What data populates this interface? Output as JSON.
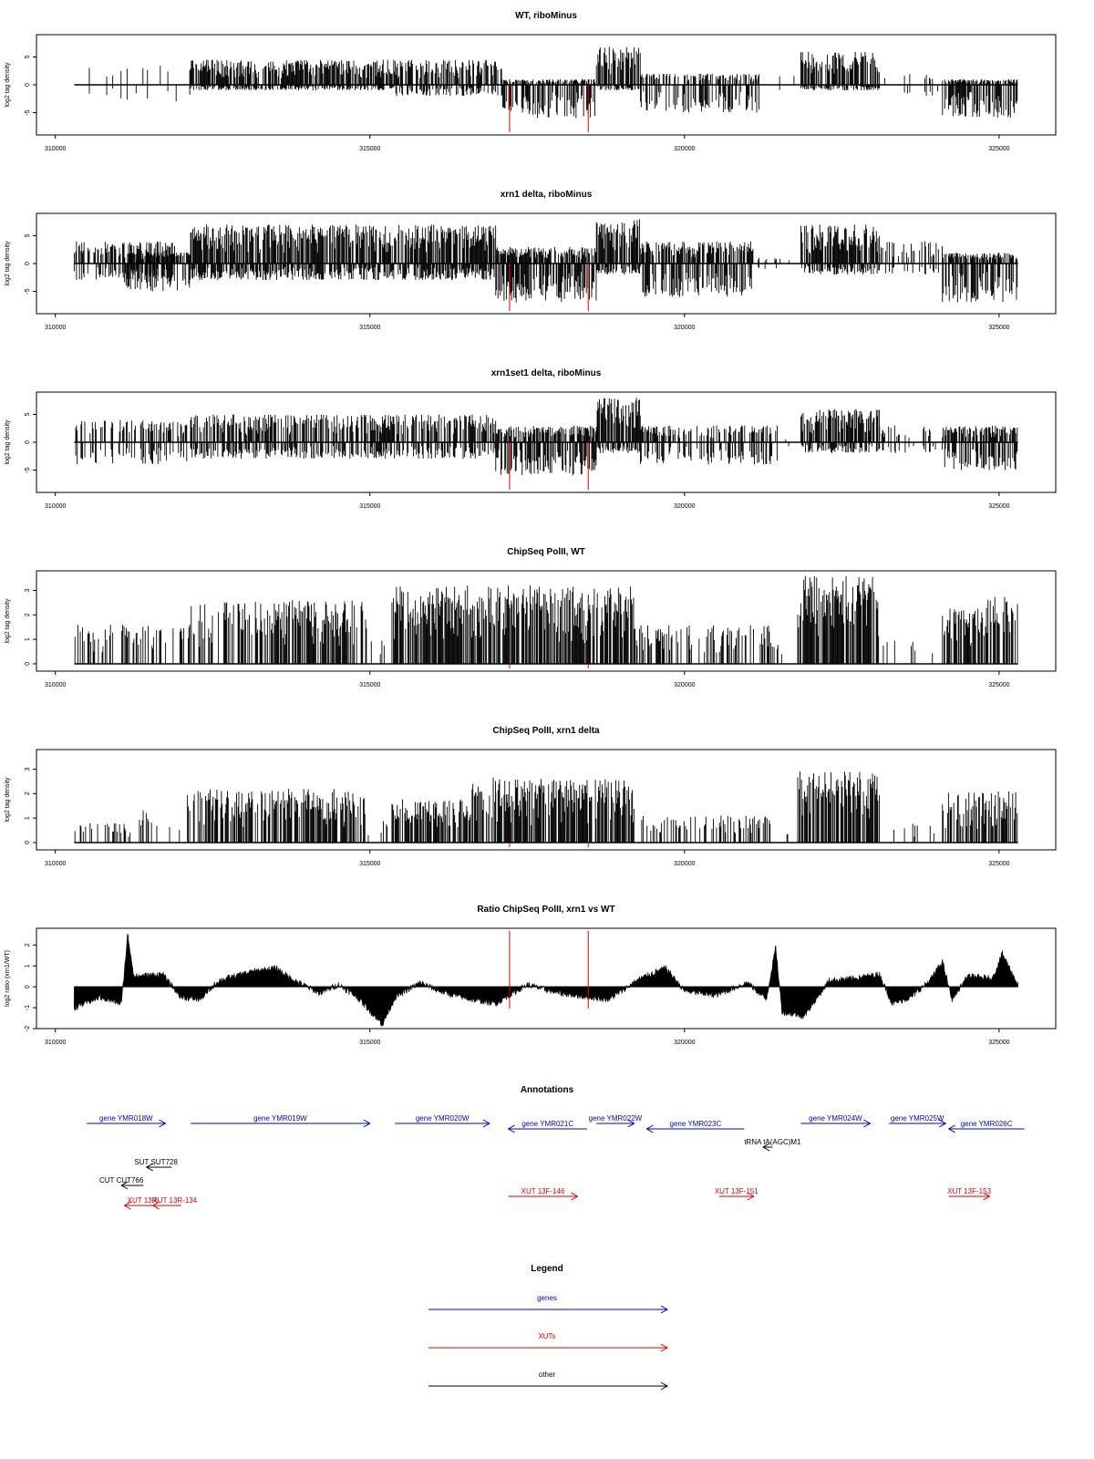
{
  "colors": {
    "gene": "#0000cc",
    "xut": "#dd0000",
    "other": "#000000",
    "marker": "#dd0000",
    "bars": "#000000"
  },
  "marker_positions": [
    317220,
    318470
  ],
  "chart_data": [
    {
      "type": "bar",
      "title": "WT, riboMinus",
      "ylabel": "log2 tag density",
      "xlim": [
        309700,
        325900
      ],
      "ylim": [
        -9,
        9
      ],
      "yticks": [
        -5,
        0,
        5
      ],
      "xticks": [
        310000,
        315000,
        320000,
        325000
      ],
      "x_range": [
        310300,
        325300
      ],
      "regions": [
        {
          "start": 310300,
          "end": 312150,
          "pos_max": 3.5,
          "neg_max": -3,
          "density": 0.12
        },
        {
          "start": 312150,
          "end": 315400,
          "pos_max": 4.5,
          "neg_max": -1,
          "density": 0.9
        },
        {
          "start": 315400,
          "end": 317100,
          "pos_max": 4.5,
          "neg_max": -2,
          "density": 0.75
        },
        {
          "start": 317100,
          "end": 318600,
          "pos_max": 1,
          "neg_max": -6,
          "density": 0.85
        },
        {
          "start": 318600,
          "end": 319300,
          "pos_max": 7,
          "neg_max": -1,
          "density": 0.95
        },
        {
          "start": 319300,
          "end": 321200,
          "pos_max": 2,
          "neg_max": -5,
          "density": 0.55
        },
        {
          "start": 321200,
          "end": 321850,
          "pos_max": 2,
          "neg_max": -1,
          "density": 0.08
        },
        {
          "start": 321850,
          "end": 323100,
          "pos_max": 6,
          "neg_max": -1,
          "density": 0.9
        },
        {
          "start": 323100,
          "end": 324100,
          "pos_max": 2,
          "neg_max": -2,
          "density": 0.15
        },
        {
          "start": 324100,
          "end": 325300,
          "pos_max": 1,
          "neg_max": -6,
          "density": 0.85
        }
      ]
    },
    {
      "type": "bar",
      "title": "xrn1 delta, riboMinus",
      "ylabel": "log2 tag density",
      "xlim": [
        309700,
        325900
      ],
      "ylim": [
        -9,
        9
      ],
      "yticks": [
        -5,
        0,
        5
      ],
      "xticks": [
        310000,
        315000,
        320000,
        325000
      ],
      "x_range": [
        310300,
        325300
      ],
      "regions": [
        {
          "start": 310300,
          "end": 311900,
          "pos_max": 4,
          "neg_max": -3,
          "density": 0.7
        },
        {
          "start": 311100,
          "end": 312150,
          "pos_max": 2,
          "neg_max": -5,
          "density": 0.8
        },
        {
          "start": 312150,
          "end": 317000,
          "pos_max": 7,
          "neg_max": -3,
          "density": 0.95
        },
        {
          "start": 317000,
          "end": 318600,
          "pos_max": 3,
          "neg_max": -7,
          "density": 0.95
        },
        {
          "start": 318600,
          "end": 319300,
          "pos_max": 8,
          "neg_max": -2,
          "density": 0.95
        },
        {
          "start": 319300,
          "end": 321100,
          "pos_max": 4,
          "neg_max": -6,
          "density": 0.85
        },
        {
          "start": 321100,
          "end": 321850,
          "pos_max": 1,
          "neg_max": -1,
          "density": 0.1
        },
        {
          "start": 321850,
          "end": 323100,
          "pos_max": 7,
          "neg_max": -2,
          "density": 0.95
        },
        {
          "start": 323100,
          "end": 324100,
          "pos_max": 4,
          "neg_max": -2,
          "density": 0.4
        },
        {
          "start": 324100,
          "end": 325300,
          "pos_max": 2,
          "neg_max": -7,
          "density": 0.9
        }
      ]
    },
    {
      "type": "bar",
      "title": "xrn1set1 delta, riboMinus",
      "ylabel": "log2 tag density",
      "xlim": [
        309700,
        325900
      ],
      "ylim": [
        -9,
        9
      ],
      "yticks": [
        -5,
        0,
        5
      ],
      "xticks": [
        310000,
        315000,
        320000,
        325000
      ],
      "x_range": [
        310300,
        325300
      ],
      "regions": [
        {
          "start": 310300,
          "end": 312150,
          "pos_max": 4,
          "neg_max": -4,
          "density": 0.5
        },
        {
          "start": 312150,
          "end": 317000,
          "pos_max": 5,
          "neg_max": -3,
          "density": 0.7
        },
        {
          "start": 317000,
          "end": 318600,
          "pos_max": 3,
          "neg_max": -6,
          "density": 0.85
        },
        {
          "start": 318600,
          "end": 319300,
          "pos_max": 8,
          "neg_max": -2,
          "density": 0.95
        },
        {
          "start": 319300,
          "end": 321500,
          "pos_max": 3,
          "neg_max": -4,
          "density": 0.6
        },
        {
          "start": 321500,
          "end": 321850,
          "pos_max": 1,
          "neg_max": -1,
          "density": 0.08
        },
        {
          "start": 321850,
          "end": 323100,
          "pos_max": 6,
          "neg_max": -2,
          "density": 0.9
        },
        {
          "start": 323100,
          "end": 324100,
          "pos_max": 3,
          "neg_max": -2,
          "density": 0.35
        },
        {
          "start": 324100,
          "end": 325300,
          "pos_max": 3,
          "neg_max": -5,
          "density": 0.85
        }
      ]
    },
    {
      "type": "bar",
      "title": "ChipSeq PolII, WT",
      "ylabel": "log2 tag density",
      "xlim": [
        309700,
        325900
      ],
      "ylim": [
        -0.3,
        3.8
      ],
      "yticks": [
        0,
        1,
        2,
        3
      ],
      "xticks": [
        310000,
        315000,
        320000,
        325000
      ],
      "x_range": [
        310300,
        325300
      ],
      "regions": [
        {
          "start": 310300,
          "end": 312100,
          "pos_max": 1.6,
          "neg_max": 0,
          "density": 0.35
        },
        {
          "start": 312100,
          "end": 314950,
          "pos_max": 2.6,
          "neg_max": 0,
          "density": 0.75
        },
        {
          "start": 314950,
          "end": 315350,
          "pos_max": 1,
          "neg_max": 0,
          "density": 0.1
        },
        {
          "start": 315350,
          "end": 319200,
          "pos_max": 3.2,
          "neg_max": 0,
          "density": 0.9
        },
        {
          "start": 319200,
          "end": 321400,
          "pos_max": 1.6,
          "neg_max": 0,
          "density": 0.5
        },
        {
          "start": 321400,
          "end": 321800,
          "pos_max": 1,
          "neg_max": 0,
          "density": 0.1
        },
        {
          "start": 321800,
          "end": 323100,
          "pos_max": 3.6,
          "neg_max": 0,
          "density": 0.95
        },
        {
          "start": 323100,
          "end": 324100,
          "pos_max": 1,
          "neg_max": 0,
          "density": 0.12
        },
        {
          "start": 324100,
          "end": 324800,
          "pos_max": 2.3,
          "neg_max": 0,
          "density": 0.8
        },
        {
          "start": 324800,
          "end": 325300,
          "pos_max": 2.8,
          "neg_max": 0,
          "density": 0.7
        }
      ]
    },
    {
      "type": "bar",
      "title": "ChipSeq PolII, xrn1 delta",
      "ylabel": "log2 tag density",
      "xlim": [
        309700,
        325900
      ],
      "ylim": [
        -0.3,
        3.8
      ],
      "yticks": [
        0,
        1,
        2,
        3
      ],
      "xticks": [
        310000,
        315000,
        320000,
        325000
      ],
      "x_range": [
        310300,
        325300
      ],
      "regions": [
        {
          "start": 310300,
          "end": 311300,
          "pos_max": 0.8,
          "neg_max": 0,
          "density": 0.2
        },
        {
          "start": 311300,
          "end": 311600,
          "pos_max": 1.4,
          "neg_max": 0,
          "density": 0.4
        },
        {
          "start": 311600,
          "end": 312100,
          "pos_max": 0.8,
          "neg_max": 0,
          "density": 0.1
        },
        {
          "start": 312100,
          "end": 314950,
          "pos_max": 2.2,
          "neg_max": 0,
          "density": 0.75
        },
        {
          "start": 314950,
          "end": 315350,
          "pos_max": 1,
          "neg_max": 0,
          "density": 0.1
        },
        {
          "start": 315350,
          "end": 316600,
          "pos_max": 1.8,
          "neg_max": 0,
          "density": 0.75
        },
        {
          "start": 316600,
          "end": 317000,
          "pos_max": 2.7,
          "neg_max": 0,
          "density": 0.9
        },
        {
          "start": 317000,
          "end": 319200,
          "pos_max": 2.6,
          "neg_max": 0,
          "density": 0.85
        },
        {
          "start": 319200,
          "end": 321400,
          "pos_max": 1.1,
          "neg_max": 0,
          "density": 0.45
        },
        {
          "start": 321400,
          "end": 321800,
          "pos_max": 0.4,
          "neg_max": 0,
          "density": 0.1
        },
        {
          "start": 321800,
          "end": 323100,
          "pos_max": 2.9,
          "neg_max": 0,
          "density": 0.95
        },
        {
          "start": 323100,
          "end": 324100,
          "pos_max": 0.8,
          "neg_max": 0,
          "density": 0.1
        },
        {
          "start": 324100,
          "end": 325300,
          "pos_max": 2.1,
          "neg_max": 0,
          "density": 0.8
        }
      ]
    },
    {
      "type": "area",
      "title": "Ratio ChipSeq PolII, xrn1 vs WT",
      "ylabel": "log2 ratio (xrn1/WT)",
      "xlim": [
        309700,
        325900
      ],
      "ylim": [
        -2,
        2.8
      ],
      "yticks": [
        -2,
        -1,
        0,
        1,
        2
      ],
      "xticks": [
        310000,
        315000,
        320000,
        325000
      ],
      "x_range": [
        310300,
        325300
      ],
      "anchors": [
        [
          310300,
          -1.0
        ],
        [
          310700,
          -0.5
        ],
        [
          311050,
          -0.8
        ],
        [
          311150,
          2.5
        ],
        [
          311250,
          0.5
        ],
        [
          311700,
          0.6
        ],
        [
          312000,
          -0.5
        ],
        [
          312300,
          -0.6
        ],
        [
          312600,
          0.3
        ],
        [
          313100,
          0.7
        ],
        [
          313500,
          0.9
        ],
        [
          313800,
          0.3
        ],
        [
          314200,
          -0.3
        ],
        [
          314500,
          0.1
        ],
        [
          314800,
          -0.5
        ],
        [
          315200,
          -1.8
        ],
        [
          315400,
          -0.5
        ],
        [
          315800,
          0.2
        ],
        [
          316100,
          -0.2
        ],
        [
          316600,
          -0.6
        ],
        [
          317000,
          -0.8
        ],
        [
          317500,
          0.1
        ],
        [
          318000,
          -0.3
        ],
        [
          318500,
          -0.5
        ],
        [
          318800,
          -0.6
        ],
        [
          319300,
          0.4
        ],
        [
          319700,
          0.9
        ],
        [
          320000,
          -0.2
        ],
        [
          320500,
          -0.4
        ],
        [
          321000,
          0.2
        ],
        [
          321300,
          -0.6
        ],
        [
          321450,
          1.9
        ],
        [
          321550,
          -1.2
        ],
        [
          321900,
          -1.4
        ],
        [
          322300,
          0.3
        ],
        [
          322700,
          0.4
        ],
        [
          323100,
          0.6
        ],
        [
          323300,
          -0.8
        ],
        [
          323600,
          -0.5
        ],
        [
          323900,
          0.3
        ],
        [
          324100,
          1.2
        ],
        [
          324250,
          -0.6
        ],
        [
          324500,
          0.5
        ],
        [
          324900,
          0.4
        ],
        [
          325050,
          1.6
        ],
        [
          325300,
          0.1
        ]
      ]
    }
  ],
  "annotations": {
    "title": "Annotations",
    "genes": [
      {
        "label": "gene YMR018W",
        "start": 310500,
        "end": 311750,
        "dir": "right",
        "row": 0
      },
      {
        "label": "gene YMR019W",
        "start": 312150,
        "end": 315000,
        "dir": "right",
        "row": 0
      },
      {
        "label": "gene YMR020W",
        "start": 315400,
        "end": 316900,
        "dir": "right",
        "row": 0
      },
      {
        "label": "gene YMR021C",
        "start": 317200,
        "end": 318450,
        "dir": "left",
        "row": 1
      },
      {
        "label": "gene YMR022W",
        "start": 318600,
        "end": 319200,
        "dir": "right",
        "row": 0
      },
      {
        "label": "gene YMR023C",
        "start": 319400,
        "end": 320950,
        "dir": "left",
        "row": 1
      },
      {
        "label": "gene YMR024W",
        "start": 321850,
        "end": 322950,
        "dir": "right",
        "row": 0
      },
      {
        "label": "gene YMR025W",
        "start": 323250,
        "end": 324150,
        "dir": "right",
        "row": 0
      },
      {
        "label": "gene YMR026C",
        "start": 324200,
        "end": 325400,
        "dir": "left",
        "row": 1
      }
    ],
    "others": [
      {
        "label": "tRNA tA(AGC)M1",
        "start": 321250,
        "end": 321400,
        "dir": "left",
        "row": 2,
        "label_x": 321400
      },
      {
        "label": "SUT SUT728",
        "start": 311450,
        "end": 311850,
        "dir": "left",
        "row": 3,
        "label_x": 311600
      },
      {
        "label": "CUT CUT766",
        "start": 311050,
        "end": 311400,
        "dir": "left",
        "row": 4,
        "label_x": 311050
      }
    ],
    "xuts": [
      {
        "label": "XUT 13F-146",
        "start": 317200,
        "end": 318300,
        "dir": "right",
        "row": 5
      },
      {
        "label": "XUT 13F-151",
        "start": 320550,
        "end": 321100,
        "dir": "right",
        "row": 5
      },
      {
        "label": "XUT 13F-153",
        "start": 324200,
        "end": 324850,
        "dir": "right",
        "row": 5
      },
      {
        "label": "XUT 13R-",
        "start": 311100,
        "end": 311650,
        "dir": "left",
        "row": 6,
        "label_x": 311400
      },
      {
        "label": "XUT 13R-134",
        "start": 311550,
        "end": 312000,
        "dir": "left",
        "row": 6,
        "label_x": 311900
      }
    ]
  },
  "legend": {
    "title": "Legend",
    "items": [
      {
        "label": "genes",
        "kind": "gene"
      },
      {
        "label": "XUTs",
        "kind": "xut"
      },
      {
        "label": "other",
        "kind": "other"
      }
    ]
  }
}
